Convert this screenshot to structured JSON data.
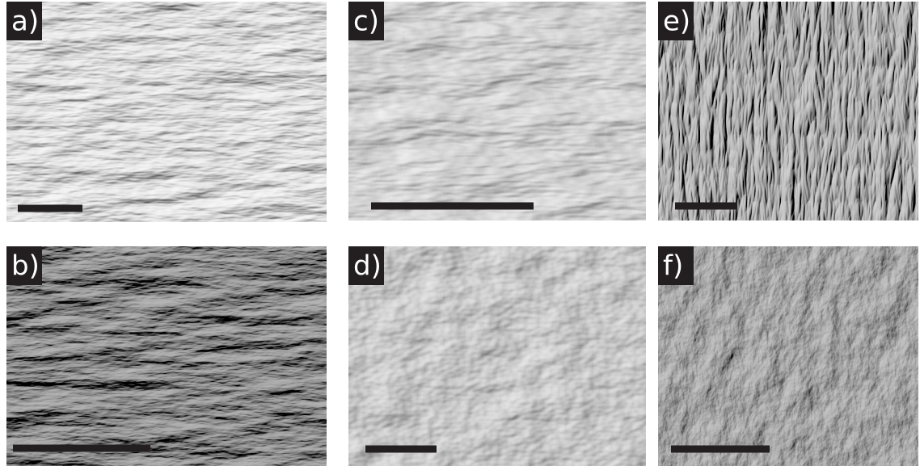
{
  "panels": [
    {
      "label": "a)"
    },
    {
      "label": "c)"
    },
    {
      "label": "e)"
    },
    {
      "label": "b)"
    },
    {
      "label": "d)"
    },
    {
      "label": "f)"
    }
  ]
}
